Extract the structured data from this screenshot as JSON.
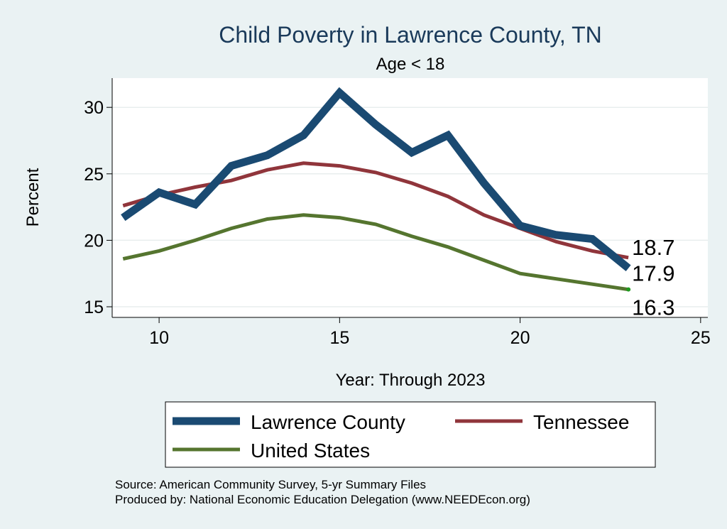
{
  "chart_data": {
    "type": "line",
    "title": "Child Poverty in Lawrence County, TN",
    "subtitle": "Age < 18",
    "xlabel": "Year: Through 2023",
    "ylabel": "Percent",
    "xlim": [
      8.7,
      25.2
    ],
    "ylim": [
      14.2,
      32.2
    ],
    "xticks": [
      10,
      15,
      20,
      25
    ],
    "yticks": [
      15,
      20,
      25,
      30
    ],
    "grid": true,
    "legend_position": "bottom",
    "series": [
      {
        "name": "Lawrence County",
        "color": "#1a4a72",
        "x": [
          9,
          10,
          11,
          12,
          13,
          14,
          15,
          16,
          17,
          18,
          19,
          20,
          21,
          22,
          23
        ],
        "values": [
          21.7,
          23.6,
          22.7,
          25.6,
          26.4,
          27.9,
          31.1,
          28.7,
          26.6,
          27.9,
          24.3,
          21.1,
          20.4,
          20.1,
          17.9
        ],
        "end_label": "17.9"
      },
      {
        "name": "Tennessee",
        "color": "#90353b",
        "x": [
          9,
          10,
          11,
          12,
          13,
          14,
          15,
          16,
          17,
          18,
          19,
          20,
          21,
          22,
          23
        ],
        "values": [
          22.6,
          23.4,
          24.0,
          24.5,
          25.3,
          25.8,
          25.6,
          25.1,
          24.3,
          23.3,
          21.9,
          20.9,
          19.9,
          19.2,
          18.7
        ],
        "end_label": "18.7"
      },
      {
        "name": "United States",
        "color": "#55752f",
        "x": [
          9,
          10,
          11,
          12,
          13,
          14,
          15,
          16,
          17,
          18,
          19,
          20,
          21,
          22,
          23
        ],
        "values": [
          18.6,
          19.2,
          20.0,
          20.9,
          21.6,
          21.9,
          21.7,
          21.2,
          20.3,
          19.5,
          18.5,
          17.5,
          17.1,
          16.7,
          16.3
        ],
        "end_label": "16.3"
      }
    ]
  },
  "notes": {
    "source": "Source: American Community Survey, 5-yr Summary Files",
    "produced": "Produced by: National Economic Education Delegation (www.NEEDEcon.org)"
  }
}
